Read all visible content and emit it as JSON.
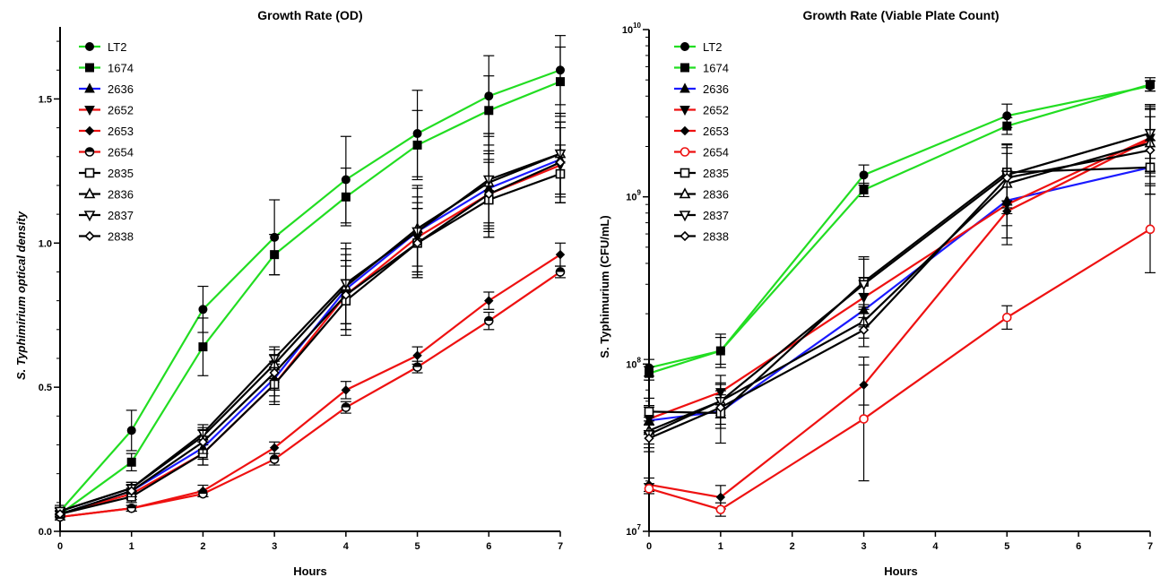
{
  "chart_data": [
    {
      "type": "line",
      "title": "Growth Rate (OD)",
      "xlabel": "Hours",
      "ylabel": "S. Typhimirium optical density",
      "xlim": [
        0,
        7
      ],
      "ylim": [
        0,
        1.75
      ],
      "x_ticks": [
        "0",
        "1",
        "2",
        "3",
        "4",
        "5",
        "6",
        "7"
      ],
      "y_ticks": [
        "0.0",
        "0.5",
        "1.0",
        "1.5"
      ],
      "y_tick_values": [
        0,
        0.5,
        1.0,
        1.5
      ],
      "scale": "linear",
      "grid": false,
      "legend_position": "top-left",
      "series": [
        {
          "name": "LT2",
          "color": "#22dd22",
          "marker": "circle",
          "x": [
            0,
            1,
            2,
            3,
            4,
            5,
            6,
            7
          ],
          "y": [
            0.07,
            0.35,
            0.77,
            1.02,
            1.22,
            1.38,
            1.51,
            1.6
          ],
          "err": [
            0.02,
            0.07,
            0.08,
            0.13,
            0.15,
            0.15,
            0.14,
            0.12
          ]
        },
        {
          "name": "1674",
          "color": "#22dd22",
          "marker": "square",
          "x": [
            0,
            1,
            2,
            3,
            4,
            5,
            6,
            7
          ],
          "y": [
            0.06,
            0.24,
            0.64,
            0.96,
            1.16,
            1.34,
            1.46,
            1.56
          ],
          "err": [
            0.02,
            0.03,
            0.1,
            0.07,
            0.1,
            0.12,
            0.12,
            0.12
          ]
        },
        {
          "name": "2636",
          "color": "#1a1aff",
          "marker": "triangle-up",
          "x": [
            0,
            1,
            2,
            3,
            4,
            5,
            6,
            7
          ],
          "y": [
            0.06,
            0.14,
            0.29,
            0.53,
            0.84,
            1.04,
            1.19,
            1.29
          ],
          "err": [
            0.01,
            0.02,
            0.04,
            0.06,
            0.12,
            0.12,
            0.12,
            0.13
          ]
        },
        {
          "name": "2652",
          "color": "#ee1111",
          "marker": "triangle-down",
          "x": [
            0,
            1,
            2,
            3,
            4,
            5,
            6,
            7
          ],
          "y": [
            0.06,
            0.13,
            0.27,
            0.51,
            0.82,
            1.02,
            1.17,
            1.27
          ],
          "err": [
            0.01,
            0.02,
            0.04,
            0.06,
            0.12,
            0.12,
            0.12,
            0.13
          ]
        },
        {
          "name": "2653",
          "color": "#ee1111",
          "marker": "diamond",
          "x": [
            0,
            1,
            2,
            3,
            4,
            5,
            6,
            7
          ],
          "y": [
            0.05,
            0.08,
            0.14,
            0.29,
            0.49,
            0.61,
            0.8,
            0.96
          ],
          "err": [
            0.01,
            0.01,
            0.02,
            0.02,
            0.03,
            0.03,
            0.03,
            0.04
          ]
        },
        {
          "name": "2654",
          "color": "#ee1111",
          "marker": "circle-half",
          "x": [
            0,
            1,
            2,
            3,
            4,
            5,
            6,
            7
          ],
          "y": [
            0.05,
            0.08,
            0.13,
            0.25,
            0.43,
            0.57,
            0.73,
            0.9
          ],
          "err": [
            0.01,
            0.01,
            0.01,
            0.02,
            0.02,
            0.02,
            0.03,
            0.02
          ]
        },
        {
          "name": "2835",
          "color": "#000000",
          "marker": "square-open",
          "x": [
            0,
            1,
            2,
            3,
            4,
            5,
            6,
            7
          ],
          "y": [
            0.06,
            0.12,
            0.27,
            0.51,
            0.8,
            1.0,
            1.15,
            1.24
          ],
          "err": [
            0.01,
            0.02,
            0.04,
            0.07,
            0.12,
            0.12,
            0.13,
            0.1
          ]
        },
        {
          "name": "2836",
          "color": "#000000",
          "marker": "triangle-up-open",
          "x": [
            0,
            1,
            2,
            3,
            4,
            5,
            6,
            7
          ],
          "y": [
            0.07,
            0.15,
            0.33,
            0.58,
            0.85,
            1.05,
            1.21,
            1.31
          ],
          "err": [
            0.01,
            0.02,
            0.03,
            0.05,
            0.13,
            0.15,
            0.17,
            0.14
          ]
        },
        {
          "name": "2837",
          "color": "#000000",
          "marker": "triangle-down-open",
          "x": [
            0,
            1,
            2,
            3,
            4,
            5,
            6,
            7
          ],
          "y": [
            0.07,
            0.15,
            0.34,
            0.6,
            0.86,
            1.04,
            1.22,
            1.31
          ],
          "err": [
            0.01,
            0.02,
            0.03,
            0.04,
            0.14,
            0.15,
            0.16,
            0.14
          ]
        },
        {
          "name": "2838",
          "color": "#000000",
          "marker": "diamond-open",
          "x": [
            0,
            1,
            2,
            3,
            4,
            5,
            6,
            7
          ],
          "y": [
            0.06,
            0.14,
            0.31,
            0.55,
            0.82,
            1.0,
            1.17,
            1.28
          ],
          "err": [
            0.01,
            0.02,
            0.04,
            0.06,
            0.12,
            0.12,
            0.15,
            0.14
          ]
        }
      ]
    },
    {
      "type": "line",
      "title": "Growth Rate (Viable Plate Count)",
      "xlabel": "Hours",
      "ylabel": "S. Typhimurium (CFU/mL)",
      "xlim": [
        0,
        7
      ],
      "ylim": [
        10000000,
        10000000000
      ],
      "x_ticks": [
        "0",
        "1",
        "2",
        "3",
        "4",
        "5",
        "6",
        "7"
      ],
      "y_ticks": [
        "10^7",
        "10^8",
        "10^9",
        "10^10"
      ],
      "y_tick_values": [
        10000000,
        100000000,
        1000000000,
        10000000000
      ],
      "scale": "log",
      "grid": false,
      "legend_position": "top-left",
      "series": [
        {
          "name": "LT2",
          "color": "#22dd22",
          "marker": "circle",
          "x": [
            0,
            1,
            3,
            5,
            7
          ],
          "y": [
            95000000,
            120000000,
            1350000000,
            3050000000,
            4600000000
          ],
          "err": [
            0.05,
            0.1,
            0.06,
            0.07,
            0.03
          ]
        },
        {
          "name": "1674",
          "color": "#22dd22",
          "marker": "square",
          "x": [
            0,
            1,
            3,
            5,
            7
          ],
          "y": [
            88000000,
            120000000,
            1100000000,
            2650000000,
            4700000000
          ],
          "err": [
            0.04,
            0.08,
            0.04,
            0.05,
            0.04
          ]
        },
        {
          "name": "2636",
          "color": "#1a1aff",
          "marker": "triangle-up",
          "x": [
            0,
            1,
            3,
            5,
            7
          ],
          "y": [
            46000000,
            52000000,
            210000000,
            950000000,
            1500000000
          ],
          "err": [
            0.08,
            0.1,
            0.1,
            0.15,
            0.16
          ]
        },
        {
          "name": "2652",
          "color": "#ee1111",
          "marker": "triangle-down",
          "x": [
            0,
            1,
            3,
            5,
            7
          ],
          "y": [
            47000000,
            68000000,
            250000000,
            900000000,
            2250000000
          ],
          "err": [
            0.08,
            0.1,
            0.12,
            0.2,
            0.2
          ]
        },
        {
          "name": "2653",
          "color": "#ee1111",
          "marker": "diamond",
          "x": [
            0,
            1,
            3,
            5,
            7
          ],
          "y": [
            19000000,
            16000000,
            75000000,
            820000000,
            2200000000
          ],
          "err": [
            0.04,
            0.07,
            0.12,
            0.2,
            0.2
          ]
        },
        {
          "name": "2654",
          "color": "#ee1111",
          "marker": "circle-open",
          "x": [
            0,
            1,
            3,
            5,
            7
          ],
          "y": [
            18000000,
            13500000,
            47000000,
            190000000,
            640000000
          ],
          "err": [
            0.03,
            0.04,
            0.37,
            0.07,
            0.26
          ]
        },
        {
          "name": "2835",
          "color": "#000000",
          "marker": "square-open",
          "x": [
            0,
            1,
            3,
            5,
            7
          ],
          "y": [
            52000000,
            51000000,
            310000000,
            1400000000,
            1500000000
          ],
          "err": [
            0.08,
            0.18,
            0.15,
            0.17,
            0.16
          ]
        },
        {
          "name": "2836",
          "color": "#000000",
          "marker": "triangle-up-open",
          "x": [
            0,
            1,
            3,
            5,
            7
          ],
          "y": [
            40000000,
            60000000,
            180000000,
            1200000000,
            2100000000
          ],
          "err": [
            0.08,
            0.1,
            0.1,
            0.18,
            0.2
          ]
        },
        {
          "name": "2837",
          "color": "#000000",
          "marker": "triangle-down-open",
          "x": [
            0,
            1,
            3,
            5,
            7
          ],
          "y": [
            38000000,
            60000000,
            300000000,
            1350000000,
            2400000000
          ],
          "err": [
            0.08,
            0.1,
            0.15,
            0.18,
            0.15
          ]
        },
        {
          "name": "2838",
          "color": "#000000",
          "marker": "diamond-open",
          "x": [
            0,
            1,
            3,
            5,
            7
          ],
          "y": [
            36000000,
            55000000,
            160000000,
            1300000000,
            1900000000
          ],
          "err": [
            0.08,
            0.1,
            0.1,
            0.18,
            0.2
          ]
        }
      ]
    }
  ]
}
